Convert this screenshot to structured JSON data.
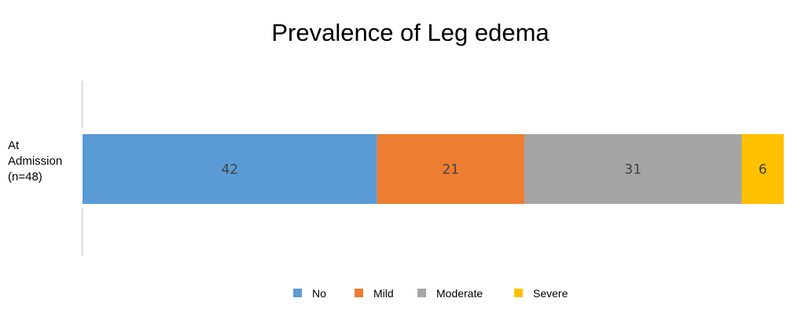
{
  "chart_data": {
    "type": "bar",
    "orientation": "horizontal",
    "stacked": true,
    "title": "Prevalence of Leg edema",
    "categories": [
      "At Admission (n=48)"
    ],
    "category_lines": [
      "At",
      "Admission",
      "(n=48)"
    ],
    "series": [
      {
        "name": "No",
        "values": [
          42
        ],
        "color": "#5B9BD5"
      },
      {
        "name": "Mild",
        "values": [
          21
        ],
        "color": "#ED7D31"
      },
      {
        "name": "Moderate",
        "values": [
          31
        ],
        "color": "#A5A5A5"
      },
      {
        "name": "Severe",
        "values": [
          6
        ],
        "color": "#FFC000"
      }
    ],
    "data_labels": [
      "42",
      "21",
      "31",
      "6"
    ],
    "xlim": [
      0,
      100
    ],
    "grid": false,
    "legend_position": "bottom"
  }
}
